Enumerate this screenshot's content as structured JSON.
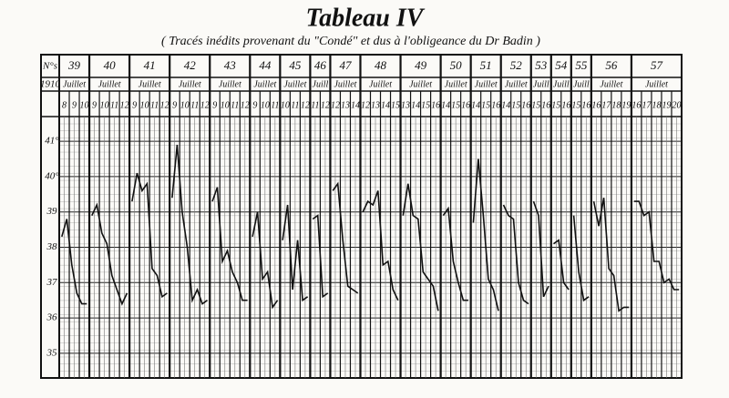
{
  "chart_data": {
    "type": "line",
    "title": "Tableau IV",
    "subtitle": "( Tracés inédits provenant du \"Condé\" et dus à l'obligeance du Dr Badin )",
    "number_header": "N°s",
    "year": "1910",
    "color": "#111111",
    "ylim": [
      34.3,
      41.7
    ],
    "yticks": [
      {
        "value": 41,
        "label": "41°"
      },
      {
        "value": 40,
        "label": "40°"
      },
      39,
      38,
      37,
      36,
      35
    ],
    "series": [
      {
        "name": "39",
        "month": "Juillet",
        "days": [
          8,
          9,
          10
        ],
        "values": [
          38.3,
          38.8,
          37.5,
          36.7,
          36.4,
          36.4
        ]
      },
      {
        "name": "40",
        "month": "Juillet",
        "days": [
          9,
          10,
          11,
          12
        ],
        "values": [
          38.9,
          39.2,
          38.4,
          38.1,
          37.2,
          36.8,
          36.4,
          36.7
        ]
      },
      {
        "name": "41",
        "month": "Juillet",
        "days": [
          9,
          10,
          11,
          12
        ],
        "values": [
          39.3,
          40.1,
          39.6,
          39.8,
          37.4,
          37.2,
          36.6,
          36.7
        ]
      },
      {
        "name": "42",
        "month": "Juillet",
        "days": [
          9,
          10,
          11,
          12
        ],
        "values": [
          39.4,
          40.9,
          39.0,
          38.0,
          36.5,
          36.8,
          36.4,
          36.5
        ]
      },
      {
        "name": "43",
        "month": "Juillet",
        "days": [
          9,
          10,
          11,
          12
        ],
        "values": [
          39.3,
          39.7,
          37.6,
          37.9,
          37.3,
          37.0,
          36.5,
          36.5
        ]
      },
      {
        "name": "44",
        "month": "Juillet",
        "days": [
          9,
          10,
          11
        ],
        "values": [
          38.3,
          39.0,
          37.1,
          37.3,
          36.3,
          36.5
        ]
      },
      {
        "name": "45",
        "month": "Juillet",
        "days": [
          10,
          11,
          12
        ],
        "values": [
          38.2,
          39.2,
          36.8,
          38.2,
          36.5,
          36.6
        ]
      },
      {
        "name": "46",
        "month": "Juill",
        "days": [
          11,
          12
        ],
        "values": [
          38.8,
          38.9,
          36.6,
          36.7
        ]
      },
      {
        "name": "47",
        "month": "Juillet",
        "days": [
          12,
          13,
          14
        ],
        "values": [
          39.6,
          39.8,
          38.2,
          36.9,
          36.8,
          36.7
        ]
      },
      {
        "name": "48",
        "month": "Juillet",
        "days": [
          12,
          13,
          14,
          15
        ],
        "values": [
          39.0,
          39.3,
          39.2,
          39.6,
          37.5,
          37.6,
          36.8,
          36.5
        ]
      },
      {
        "name": "49",
        "month": "Juillet",
        "days": [
          13,
          14,
          15,
          16
        ],
        "values": [
          38.9,
          39.8,
          38.9,
          38.8,
          37.3,
          37.1,
          36.9,
          36.2
        ]
      },
      {
        "name": "50",
        "month": "Juillet",
        "days": [
          14,
          15,
          16
        ],
        "values": [
          38.9,
          39.1,
          37.6,
          37.0,
          36.5,
          36.5
        ]
      },
      {
        "name": "51",
        "month": "Juillet",
        "days": [
          14,
          15,
          16
        ],
        "values": [
          38.7,
          40.5,
          38.9,
          37.1,
          36.8,
          36.2
        ]
      },
      {
        "name": "52",
        "month": "Juillet",
        "days": [
          14,
          15,
          16
        ],
        "values": [
          39.2,
          38.9,
          38.8,
          37.0,
          36.5,
          36.4
        ]
      },
      {
        "name": "53",
        "month": "Juill",
        "days": [
          15,
          16
        ],
        "values": [
          39.3,
          38.9,
          36.6,
          36.9
        ]
      },
      {
        "name": "54",
        "month": "Juill",
        "days": [
          15,
          16
        ],
        "values": [
          38.1,
          38.2,
          37.0,
          36.8
        ]
      },
      {
        "name": "55",
        "month": "Juill",
        "days": [
          15,
          16
        ],
        "values": [
          38.9,
          37.3,
          36.5,
          36.6
        ]
      },
      {
        "name": "56",
        "month": "Juillet",
        "days": [
          16,
          17,
          18,
          19
        ],
        "values": [
          39.3,
          38.6,
          39.4,
          37.4,
          37.2,
          36.2,
          36.3,
          36.3
        ]
      },
      {
        "name": "57",
        "month": "Juillet",
        "days": [
          16,
          17,
          18,
          19,
          20
        ],
        "values": [
          39.3,
          39.3,
          38.9,
          39.0,
          37.6,
          37.6,
          37.0,
          37.1,
          36.8,
          36.8
        ]
      }
    ]
  }
}
